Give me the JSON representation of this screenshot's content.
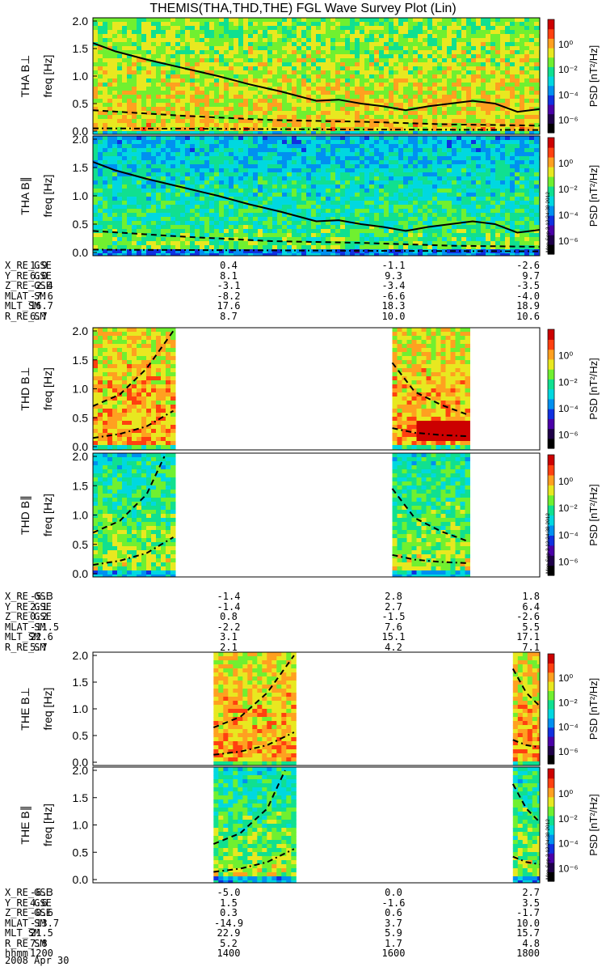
{
  "title": "THEMIS(THA,THD,THE) FGL Wave Survey Plot (Lin)",
  "colors": {
    "spectrogram_palette": [
      "#000000",
      "#1e0048",
      "#4a00a8",
      "#1030e0",
      "#0090f0",
      "#00d8e0",
      "#10e090",
      "#70f030",
      "#e8e820",
      "#ffa020",
      "#ff4010",
      "#cc0000"
    ],
    "fill": "#ffffff",
    "line": "#000000"
  },
  "colorbar": {
    "label": "PSD [nT²/Hz]",
    "ticks": [
      "10⁰",
      "10⁻²",
      "10⁻⁴",
      "10⁻⁶"
    ],
    "log_range": [
      -7,
      2
    ]
  },
  "timestamp": "Mon Sep 3 12:24:38 2012",
  "chart_data": [
    {
      "type": "heatmap",
      "name": "THA B⊥",
      "ylabel": "THA B⊥\nfreq [Hz]",
      "ylim": [
        0,
        2
      ],
      "yticks": [
        "0.0",
        "0.5",
        "1.0",
        "1.5",
        "2.0"
      ],
      "coverage": [
        [
          0,
          1
        ]
      ],
      "solid_line": {
        "x": [
          0,
          0.05,
          0.12,
          0.2,
          0.28,
          0.35,
          0.42,
          0.5,
          0.55,
          0.6,
          0.65,
          0.7,
          0.75,
          0.8,
          0.85,
          0.9,
          0.95,
          1
        ],
        "y": [
          1.6,
          1.45,
          1.3,
          1.15,
          1.0,
          0.85,
          0.72,
          0.55,
          0.57,
          0.5,
          0.45,
          0.38,
          0.45,
          0.5,
          0.55,
          0.5,
          0.35,
          0.4
        ]
      },
      "dashed_line": {
        "x": [
          0,
          0.2,
          0.4,
          0.6,
          0.8,
          1
        ],
        "y": [
          0.38,
          0.28,
          0.2,
          0.17,
          0.12,
          0.1
        ]
      },
      "dashdot_line": {
        "x": [
          0,
          0.3,
          0.6,
          1
        ],
        "y": [
          0.05,
          0.04,
          0.03,
          0.02
        ]
      }
    },
    {
      "type": "heatmap",
      "name": "THA B∥",
      "ylabel": "THA B∥\nfreq [Hz]",
      "ylim": [
        0,
        2
      ],
      "yticks": [
        "0.0",
        "0.5",
        "1.0",
        "1.5",
        "2.0"
      ],
      "coverage": [
        [
          0,
          1
        ]
      ],
      "solid_line": {
        "x": [
          0,
          0.05,
          0.12,
          0.2,
          0.28,
          0.35,
          0.42,
          0.5,
          0.55,
          0.6,
          0.65,
          0.7,
          0.75,
          0.8,
          0.85,
          0.9,
          0.95,
          1
        ],
        "y": [
          1.6,
          1.45,
          1.3,
          1.15,
          1.0,
          0.85,
          0.72,
          0.55,
          0.57,
          0.5,
          0.45,
          0.38,
          0.45,
          0.5,
          0.55,
          0.5,
          0.35,
          0.4
        ]
      },
      "dashed_line": {
        "x": [
          0,
          0.2,
          0.4,
          0.6,
          0.8,
          1
        ],
        "y": [
          0.38,
          0.28,
          0.2,
          0.17,
          0.12,
          0.1
        ]
      },
      "dashdot_line": {
        "x": [
          0,
          0.3,
          0.6,
          1
        ],
        "y": [
          0.05,
          0.04,
          0.03,
          0.02
        ]
      }
    },
    {
      "type": "heatmap",
      "name": "THD B⊥",
      "ylabel": "THD B⊥\nfreq [Hz]",
      "ylim": [
        0,
        2
      ],
      "yticks": [
        "0.0",
        "0.5",
        "1.0",
        "1.5",
        "2.0"
      ],
      "coverage": [
        [
          0,
          0.18
        ],
        [
          0.67,
          0.84
        ]
      ],
      "solid_line": null,
      "dashed_line": {
        "segments": [
          {
            "x": [
              0,
              0.06,
              0.12,
              0.18
            ],
            "y": [
              0.7,
              0.9,
              1.35,
              2.0
            ]
          },
          {
            "x": [
              0.67,
              0.72,
              0.78,
              0.84
            ],
            "y": [
              1.45,
              0.95,
              0.72,
              0.55
            ]
          }
        ]
      },
      "dashdot_line": {
        "segments": [
          {
            "x": [
              0,
              0.06,
              0.12,
              0.18
            ],
            "y": [
              0.15,
              0.22,
              0.35,
              0.62
            ]
          },
          {
            "x": [
              0.67,
              0.72,
              0.78,
              0.84
            ],
            "y": [
              0.32,
              0.24,
              0.2,
              0.18
            ]
          }
        ]
      }
    },
    {
      "type": "heatmap",
      "name": "THD B∥",
      "ylabel": "THD B∥\nfreq [Hz]",
      "ylim": [
        0,
        2
      ],
      "yticks": [
        "0.0",
        "0.5",
        "1.0",
        "1.5",
        "2.0"
      ],
      "coverage": [
        [
          0,
          0.18
        ],
        [
          0.67,
          0.84
        ]
      ],
      "solid_line": null,
      "dashed_line": {
        "segments": [
          {
            "x": [
              0,
              0.06,
              0.12,
              0.16
            ],
            "y": [
              0.7,
              0.9,
              1.35,
              2.0
            ]
          },
          {
            "x": [
              0.67,
              0.72,
              0.78,
              0.84
            ],
            "y": [
              1.45,
              0.95,
              0.72,
              0.55
            ]
          }
        ]
      },
      "dashdot_line": {
        "segments": [
          {
            "x": [
              0,
              0.06,
              0.12,
              0.18
            ],
            "y": [
              0.15,
              0.22,
              0.35,
              0.62
            ]
          },
          {
            "x": [
              0.67,
              0.72,
              0.78,
              0.84
            ],
            "y": [
              0.32,
              0.24,
              0.2,
              0.18
            ]
          }
        ]
      }
    },
    {
      "type": "heatmap",
      "name": "THE B⊥",
      "ylabel": "THE B⊥\nfreq [Hz]",
      "ylim": [
        0,
        2
      ],
      "yticks": [
        "0.0",
        "0.5",
        "1.0",
        "1.5",
        "2.0"
      ],
      "coverage": [
        [
          0.27,
          0.45
        ],
        [
          0.94,
          1.0
        ]
      ],
      "solid_line": null,
      "dashed_line": {
        "segments": [
          {
            "x": [
              0.27,
              0.33,
              0.39,
              0.45
            ],
            "y": [
              0.65,
              0.85,
              1.3,
              2.0
            ]
          },
          {
            "x": [
              0.94,
              0.97,
              1.0
            ],
            "y": [
              1.75,
              1.3,
              1.05
            ]
          }
        ]
      },
      "dashdot_line": {
        "segments": [
          {
            "x": [
              0.27,
              0.33,
              0.39,
              0.45
            ],
            "y": [
              0.14,
              0.2,
              0.32,
              0.56
            ]
          },
          {
            "x": [
              0.94,
              0.97,
              1.0
            ],
            "y": [
              0.42,
              0.32,
              0.28
            ]
          }
        ]
      }
    },
    {
      "type": "heatmap",
      "name": "THE B∥",
      "ylabel": "THE B∥\nfreq [Hz]",
      "ylim": [
        0,
        2
      ],
      "yticks": [
        "0.0",
        "0.5",
        "1.0",
        "1.5",
        "2.0"
      ],
      "coverage": [
        [
          0.27,
          0.45
        ],
        [
          0.94,
          1.0
        ]
      ],
      "solid_line": null,
      "dashed_line": {
        "segments": [
          {
            "x": [
              0.27,
              0.33,
              0.39,
              0.43
            ],
            "y": [
              0.65,
              0.85,
              1.3,
              2.0
            ]
          },
          {
            "x": [
              0.94,
              0.97,
              1.0
            ],
            "y": [
              1.75,
              1.3,
              1.05
            ]
          }
        ]
      },
      "dashdot_line": {
        "segments": [
          {
            "x": [
              0.27,
              0.33,
              0.39,
              0.45
            ],
            "y": [
              0.14,
              0.2,
              0.32,
              0.56
            ]
          },
          {
            "x": [
              0.94,
              0.97,
              1.0
            ],
            "y": [
              0.42,
              0.32,
              0.28
            ]
          }
        ]
      }
    }
  ],
  "ephemeris": [
    {
      "rows": [
        {
          "label": "X_RE_GSE",
          "values": [
            "1.9",
            "0.4",
            "-1.1",
            "-2.6"
          ]
        },
        {
          "label": "Y_RE_GSE",
          "values": [
            "6.0",
            "8.1",
            "9.3",
            "9.7"
          ]
        },
        {
          "label": "Z_RE_GSE",
          "values": [
            "-2.4",
            "-3.1",
            "-3.4",
            "-3.5"
          ]
        },
        {
          "label": "MLAT_SM",
          "values": [
            "-7.6",
            "-8.2",
            "-6.6",
            "-4.0"
          ]
        },
        {
          "label": "MLT_SM",
          "values": [
            "16.7",
            "17.6",
            "18.3",
            "18.9"
          ]
        },
        {
          "label": "R_RE_SM",
          "values": [
            "6.7",
            "8.7",
            "10.0",
            "10.6"
          ]
        }
      ]
    },
    {
      "rows": [
        {
          "label": "X_RE_GSE",
          "values": [
            "-5.3",
            "-1.4",
            "2.8",
            "1.8"
          ]
        },
        {
          "label": "Y_RE_GSE",
          "values": [
            "2.1",
            "-1.4",
            "2.7",
            "6.4"
          ]
        },
        {
          "label": "Z_RE_GSE",
          "values": [
            "0.2",
            "0.8",
            "-1.5",
            "-2.6"
          ]
        },
        {
          "label": "MLAT_SM",
          "values": [
            "-11.5",
            "-2.2",
            "7.6",
            "5.5"
          ]
        },
        {
          "label": "MLT_SM",
          "values": [
            "22.6",
            "3.1",
            "15.1",
            "17.1"
          ]
        },
        {
          "label": "R_RE_SM",
          "values": [
            "5.7",
            "2.1",
            "4.2",
            "7.1"
          ]
        }
      ]
    },
    {
      "rows": [
        {
          "label": "X_RE_GSE",
          "values": [
            "-6.3",
            "-5.0",
            "0.0",
            "2.7"
          ]
        },
        {
          "label": "Y_RE_GSE",
          "values": [
            "4.6",
            "1.5",
            "-1.6",
            "3.5"
          ]
        },
        {
          "label": "Z_RE_GSE",
          "values": [
            "-0.6",
            "0.3",
            "0.6",
            "-1.7"
          ]
        },
        {
          "label": "MLAT_SM",
          "values": [
            "-13.7",
            "-14.9",
            "3.7",
            "10.0"
          ]
        },
        {
          "label": "MLT_SM",
          "values": [
            "21.5",
            "22.9",
            "5.9",
            "15.7"
          ]
        },
        {
          "label": "R_RE_SM",
          "values": [
            "7.8",
            "5.2",
            "1.7",
            "4.8"
          ]
        },
        {
          "label": "hhmm",
          "values": [
            "1200",
            "1400",
            "1600",
            "1800"
          ]
        }
      ]
    }
  ],
  "date_label": "2008 Apr 30"
}
